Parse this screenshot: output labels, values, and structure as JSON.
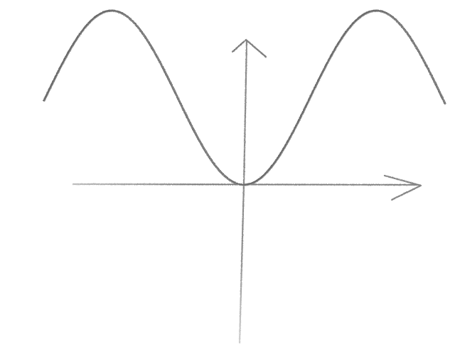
{
  "figure": {
    "kind": "hand-drawn pencil sketch",
    "description_free": true
  },
  "chart_data": {
    "type": "line",
    "title": "",
    "xlabel": "",
    "ylabel": "",
    "grid": false,
    "axes": {
      "x_arrow": "right",
      "y_arrow": "up",
      "origin_at_curve_minimum": true
    },
    "curve": {
      "shape": "even periodic wave with minimum at origin",
      "extrema": [
        {
          "kind": "maximum",
          "x": -3.14,
          "relative_height": 1.0
        },
        {
          "kind": "minimum",
          "x": 0,
          "relative_height": 0.0
        },
        {
          "kind": "maximum",
          "x": 3.14,
          "relative_height": 1.0
        }
      ]
    },
    "colors": {
      "curve": "#6b6b6b",
      "axes": "#808080",
      "background": "#ffffff"
    }
  }
}
